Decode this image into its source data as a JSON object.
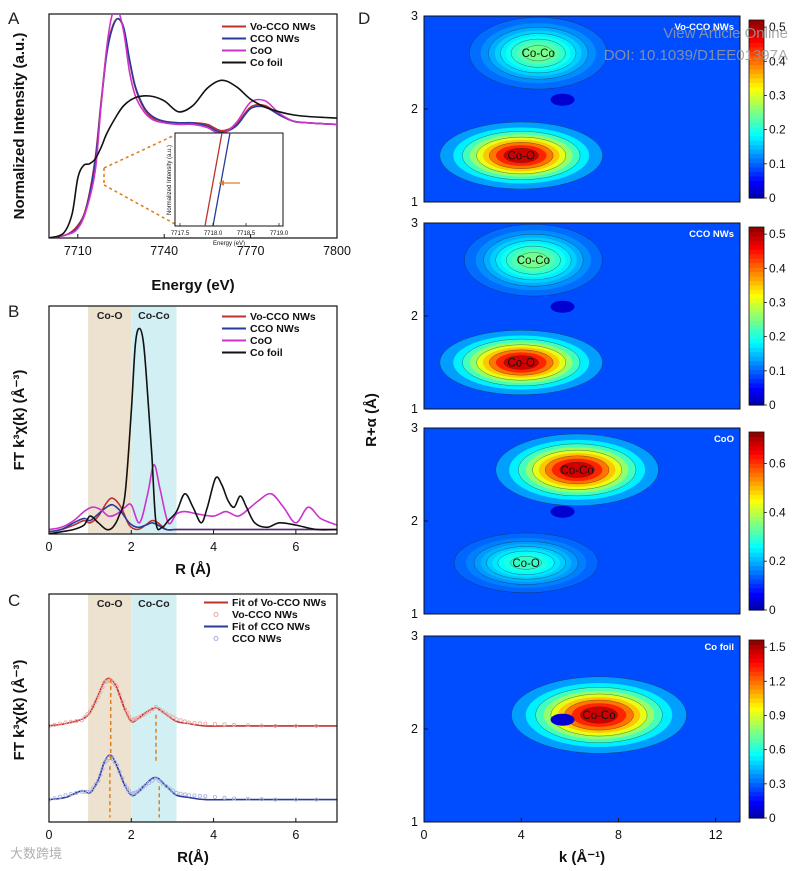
{
  "watermark": {
    "view_article": "View Article Online",
    "doi": "DOI: 10.1039/D1EE01397A",
    "logo_text": "大数跨境"
  },
  "colors": {
    "vo_cco": "#c0302c",
    "cco": "#2a3a9c",
    "coo": "#cc33cc",
    "co_foil": "#111111",
    "band_coo": "#ede2cf",
    "band_coco": "#d2f0f3",
    "fit_guide": "#e08020"
  },
  "chart_data": [
    {
      "id": "A",
      "type": "line",
      "panel_label": "A",
      "xlabel": "Energy (eV)",
      "ylabel": "Normalized Intensity (a.u.)",
      "xlim": [
        7700,
        7800
      ],
      "ylim": [
        0,
        1.42
      ],
      "xticks": [
        7710,
        7740,
        7770,
        7800
      ],
      "xtick_labels": [
        "7710",
        "7740",
        "7770",
        "7800"
      ],
      "legend": [
        "Vo-CCO NWs",
        "CCO NWs",
        "CoO",
        "Co foil"
      ],
      "series": [
        {
          "name": "Vo-CCO NWs",
          "color_key": "vo_cco",
          "x": [
            7700,
            7706,
            7710,
            7713,
            7716,
            7718,
            7720,
            7722,
            7724,
            7726,
            7728,
            7730,
            7733,
            7736,
            7740,
            7745,
            7750,
            7755,
            7760,
            7765,
            7770,
            7775,
            7780,
            7785,
            7790,
            7800
          ],
          "y": [
            0.0,
            0.02,
            0.08,
            0.2,
            0.5,
            0.85,
            1.18,
            1.34,
            1.39,
            1.32,
            1.12,
            0.95,
            0.82,
            0.76,
            0.74,
            0.73,
            0.73,
            0.72,
            0.68,
            0.72,
            0.83,
            0.84,
            0.78,
            0.74,
            0.73,
            0.72
          ]
        },
        {
          "name": "CCO NWs",
          "color_key": "cco",
          "x": [
            7700,
            7706,
            7710,
            7713,
            7716,
            7718,
            7720,
            7722,
            7724,
            7726,
            7728,
            7730,
            7733,
            7736,
            7740,
            7745,
            7750,
            7755,
            7760,
            7765,
            7770,
            7775,
            7780,
            7785,
            7790,
            7800
          ],
          "y": [
            0.0,
            0.02,
            0.07,
            0.19,
            0.48,
            0.83,
            1.16,
            1.33,
            1.39,
            1.33,
            1.13,
            0.96,
            0.83,
            0.77,
            0.74,
            0.73,
            0.73,
            0.71,
            0.67,
            0.71,
            0.82,
            0.83,
            0.78,
            0.74,
            0.73,
            0.72
          ]
        },
        {
          "name": "CoO",
          "color_key": "coo",
          "x": [
            7700,
            7706,
            7710,
            7713,
            7716,
            7718,
            7720,
            7722,
            7724,
            7726,
            7728,
            7730,
            7733,
            7736,
            7740,
            7745,
            7750,
            7755,
            7760,
            7765,
            7770,
            7775,
            7780,
            7785,
            7790,
            7800
          ],
          "y": [
            0.0,
            0.02,
            0.06,
            0.18,
            0.42,
            0.82,
            1.2,
            1.42,
            1.44,
            1.3,
            1.05,
            0.9,
            0.8,
            0.75,
            0.73,
            0.72,
            0.72,
            0.7,
            0.66,
            0.73,
            0.86,
            0.87,
            0.79,
            0.74,
            0.73,
            0.72
          ]
        },
        {
          "name": "Co foil",
          "color_key": "co_foil",
          "x": [
            7700,
            7705,
            7708,
            7710,
            7712,
            7714,
            7716,
            7718,
            7720,
            7723,
            7726,
            7730,
            7735,
            7740,
            7745,
            7750,
            7755,
            7760,
            7765,
            7770,
            7775,
            7780,
            7785,
            7790,
            7800
          ],
          "y": [
            0.0,
            0.03,
            0.15,
            0.38,
            0.46,
            0.47,
            0.5,
            0.57,
            0.66,
            0.76,
            0.84,
            0.89,
            0.9,
            0.87,
            0.8,
            0.84,
            0.95,
            1.0,
            0.96,
            0.88,
            0.83,
            0.8,
            0.78,
            0.77,
            0.76
          ]
        }
      ],
      "inset": {
        "xlabel": "Energy (eV)",
        "ylabel": "Normalized Intensity (a.u.)",
        "xtick_labels": [
          "7717.5",
          "7718.0",
          "7718.5",
          "7719.0"
        ]
      }
    },
    {
      "id": "B",
      "type": "line",
      "panel_label": "B",
      "xlabel": "R (Å)",
      "ylabel": "FT k³χ(k) (Å⁻³)",
      "xlim": [
        0,
        7
      ],
      "ylim": [
        0,
        1.02
      ],
      "xticks": [
        0,
        2,
        4,
        6
      ],
      "xtick_labels": [
        "0",
        "2",
        "4",
        "6"
      ],
      "bands": [
        {
          "label": "Co-O",
          "range": [
            0.95,
            2.0
          ],
          "color_key": "band_coo"
        },
        {
          "label": "Co-Co",
          "range": [
            2.0,
            3.1
          ],
          "color_key": "band_coco"
        }
      ],
      "legend": [
        "Vo-CCO NWs",
        "CCO NWs",
        "CoO",
        "Co foil"
      ],
      "series": [
        {
          "name": "Vo-CCO NWs",
          "color_key": "vo_cco",
          "x": [
            0,
            0.3,
            0.6,
            0.85,
            1.0,
            1.2,
            1.4,
            1.55,
            1.75,
            1.95,
            2.15,
            2.35,
            2.5,
            2.65,
            2.85,
            3.1,
            3.5,
            4.0,
            4.5,
            5.0,
            5.5,
            6.0,
            6.5,
            7.0
          ],
          "y": [
            0.01,
            0.02,
            0.04,
            0.06,
            0.05,
            0.08,
            0.14,
            0.16,
            0.12,
            0.04,
            0.02,
            0.04,
            0.06,
            0.05,
            0.02,
            0.02,
            0.02,
            0.02,
            0.02,
            0.02,
            0.02,
            0.02,
            0.02,
            0.02
          ]
        },
        {
          "name": "CCO NWs",
          "color_key": "cco",
          "x": [
            0,
            0.3,
            0.6,
            0.85,
            1.0,
            1.2,
            1.4,
            1.55,
            1.75,
            1.95,
            2.15,
            2.35,
            2.5,
            2.65,
            2.85,
            3.1,
            3.5,
            4.0,
            4.5,
            5.0,
            5.5,
            6.0,
            6.5,
            7.0
          ],
          "y": [
            0.01,
            0.02,
            0.05,
            0.07,
            0.06,
            0.09,
            0.12,
            0.13,
            0.1,
            0.05,
            0.03,
            0.04,
            0.05,
            0.04,
            0.02,
            0.02,
            0.02,
            0.02,
            0.02,
            0.02,
            0.02,
            0.02,
            0.02,
            0.02
          ]
        },
        {
          "name": "CoO",
          "color_key": "coo",
          "x": [
            0,
            0.3,
            0.6,
            0.85,
            1.05,
            1.25,
            1.45,
            1.65,
            1.85,
            2.0,
            2.2,
            2.4,
            2.55,
            2.7,
            2.9,
            3.1,
            3.3,
            3.6,
            4.0,
            4.3,
            4.6,
            4.9,
            5.1,
            5.4,
            5.7,
            6.0,
            6.3,
            6.6,
            7.0
          ],
          "y": [
            0.02,
            0.03,
            0.06,
            0.1,
            0.12,
            0.11,
            0.08,
            0.09,
            0.12,
            0.13,
            0.05,
            0.18,
            0.31,
            0.2,
            0.05,
            0.09,
            0.1,
            0.09,
            0.08,
            0.1,
            0.08,
            0.12,
            0.15,
            0.18,
            0.12,
            0.05,
            0.12,
            0.07,
            0.04
          ]
        },
        {
          "name": "Co foil",
          "color_key": "co_foil",
          "x": [
            0,
            0.3,
            0.6,
            0.85,
            1.0,
            1.2,
            1.4,
            1.55,
            1.7,
            1.85,
            2.0,
            2.1,
            2.2,
            2.3,
            2.4,
            2.5,
            2.6,
            2.75,
            2.9,
            3.1,
            3.3,
            3.5,
            3.7,
            3.85,
            4.05,
            4.2,
            4.35,
            4.5,
            4.65,
            4.8,
            5.0,
            5.3,
            5.6,
            6.0,
            6.5,
            7.0
          ],
          "y": [
            0.0,
            0.01,
            0.02,
            0.04,
            0.08,
            0.05,
            0.02,
            0.03,
            0.08,
            0.18,
            0.55,
            0.85,
            0.92,
            0.85,
            0.62,
            0.35,
            0.05,
            0.03,
            0.06,
            0.1,
            0.18,
            0.12,
            0.05,
            0.12,
            0.25,
            0.22,
            0.15,
            0.12,
            0.17,
            0.12,
            0.05,
            0.03,
            0.05,
            0.04,
            0.02,
            0.02
          ]
        }
      ]
    },
    {
      "id": "C",
      "type": "line",
      "panel_label": "C",
      "xlabel": "R(Å)",
      "ylabel": "FT k³χ(k) (Å⁻³)",
      "xlim": [
        0,
        7
      ],
      "ylim": [
        0,
        1.02
      ],
      "xticks": [
        0,
        2,
        4,
        6
      ],
      "xtick_labels": [
        "0",
        "2",
        "4",
        "6"
      ],
      "bands": [
        {
          "label": "Co-O",
          "range": [
            0.95,
            2.0
          ],
          "color_key": "band_coo"
        },
        {
          "label": "Co-Co",
          "range": [
            2.0,
            3.1
          ],
          "color_key": "band_coco"
        }
      ],
      "legend": [
        "Fit of Vo-CCO NWs",
        "Vo-CCO NWs",
        "Fit of CCO NWs",
        "CCO NWs"
      ],
      "guides": [
        {
          "x": 1.5,
          "y1": 0.64,
          "y2": 0.27
        },
        {
          "x": 1.48,
          "y1": 0.25,
          "y2": 0.02
        },
        {
          "x": 2.6,
          "y1": 0.48,
          "y2": 0.27
        },
        {
          "x": 2.68,
          "y1": 0.16,
          "y2": 0.02
        }
      ],
      "series": [
        {
          "name": "Fit of Vo-CCO NWs",
          "color_key": "vo_cco",
          "offset": 0.43,
          "x": [
            0,
            0.4,
            0.8,
            1.0,
            1.2,
            1.35,
            1.5,
            1.65,
            1.85,
            2.0,
            2.15,
            2.35,
            2.6,
            2.85,
            3.1,
            3.4,
            3.8,
            4.5,
            5.5,
            7.0
          ],
          "y": [
            0.0,
            0.01,
            0.03,
            0.06,
            0.14,
            0.2,
            0.21,
            0.17,
            0.07,
            0.02,
            0.03,
            0.06,
            0.08,
            0.05,
            0.02,
            0.01,
            0.0,
            0.0,
            0.0,
            0.0
          ]
        },
        {
          "name": "Vo-CCO NWs",
          "color_key": "vo_cco",
          "offset": 0.43,
          "markers": true,
          "x": [
            0,
            0.4,
            0.8,
            1.0,
            1.2,
            1.35,
            1.5,
            1.65,
            1.85,
            2.0,
            2.15,
            2.35,
            2.6,
            2.85,
            3.1,
            3.4,
            3.8,
            4.5,
            5.5,
            7.0
          ],
          "y": [
            0.0,
            0.015,
            0.025,
            0.065,
            0.13,
            0.195,
            0.205,
            0.175,
            0.075,
            0.025,
            0.035,
            0.055,
            0.085,
            0.055,
            0.03,
            0.015,
            0.01,
            0.005,
            0.0,
            0.0
          ]
        },
        {
          "name": "Fit of CCO NWs",
          "color_key": "cco",
          "offset": 0.1,
          "x": [
            0,
            0.4,
            0.8,
            1.0,
            1.2,
            1.35,
            1.5,
            1.65,
            1.85,
            2.0,
            2.15,
            2.35,
            2.6,
            2.85,
            3.1,
            3.4,
            3.8,
            4.5,
            5.5,
            7.0
          ],
          "y": [
            0.0,
            0.01,
            0.04,
            0.03,
            0.09,
            0.17,
            0.2,
            0.15,
            0.06,
            0.02,
            0.03,
            0.07,
            0.1,
            0.06,
            0.02,
            0.01,
            0.0,
            0.0,
            0.0,
            0.0
          ]
        },
        {
          "name": "CCO NWs",
          "color_key": "cco",
          "offset": 0.1,
          "markers": true,
          "x": [
            0,
            0.4,
            0.8,
            1.0,
            1.2,
            1.35,
            1.5,
            1.65,
            1.85,
            2.0,
            2.15,
            2.35,
            2.6,
            2.85,
            3.1,
            3.4,
            3.8,
            4.5,
            5.5,
            7.0
          ],
          "y": [
            0.0,
            0.02,
            0.035,
            0.035,
            0.085,
            0.165,
            0.195,
            0.155,
            0.065,
            0.025,
            0.035,
            0.065,
            0.095,
            0.06,
            0.03,
            0.02,
            0.015,
            0.005,
            0.0,
            0.0
          ]
        }
      ]
    },
    {
      "id": "D",
      "type": "heatmap",
      "panel_label": "D",
      "xlabel": "k (Å⁻¹)",
      "ylabel": "R+α (Å)",
      "xlim": [
        0,
        13
      ],
      "xticks": [
        0,
        4,
        8,
        12
      ],
      "xtick_labels": [
        "0",
        "4",
        "8",
        "12"
      ],
      "maps": [
        {
          "title": "Vo-CCO NWs",
          "ylim": [
            1,
            3
          ],
          "yticks": [
            "1",
            "2",
            "3"
          ],
          "cbar_max": 0.5,
          "cbar_ticks": [
            "0",
            "0.1",
            "0.2",
            "0.3",
            "0.4",
            "0.5"
          ],
          "peaks": [
            {
              "label": "Co-O",
              "k": 4.0,
              "r": 1.5,
              "amp": 0.5,
              "sk": 2.6,
              "sr": 0.28
            },
            {
              "label": "Co-Co",
              "k": 4.7,
              "r": 2.6,
              "amp": 0.2,
              "sk": 2.2,
              "sr": 0.3
            }
          ]
        },
        {
          "title": "CCO NWs",
          "ylim": [
            1,
            3
          ],
          "yticks": [
            "1",
            "2",
            "3"
          ],
          "cbar_max": 0.5,
          "cbar_ticks": [
            "0",
            "0.1",
            "0.2",
            "0.3",
            "0.4",
            "0.5"
          ],
          "peaks": [
            {
              "label": "Co-O",
              "k": 4.0,
              "r": 1.5,
              "amp": 0.5,
              "sk": 2.6,
              "sr": 0.27
            },
            {
              "label": "Co-Co",
              "k": 4.5,
              "r": 2.6,
              "amp": 0.2,
              "sk": 2.2,
              "sr": 0.3
            }
          ]
        },
        {
          "title": "CoO",
          "ylim": [
            1,
            3
          ],
          "yticks": [
            "1",
            "2",
            "3"
          ],
          "cbar_max": 0.7,
          "cbar_ticks": [
            "0",
            "0.2",
            "0.4",
            "0.6"
          ],
          "peaks": [
            {
              "label": "Co-Co",
              "k": 6.3,
              "r": 2.55,
              "amp": 0.7,
              "sk": 2.6,
              "sr": 0.3
            },
            {
              "label": "Co-O",
              "k": 4.2,
              "r": 1.55,
              "amp": 0.22,
              "sk": 2.3,
              "sr": 0.25
            }
          ]
        },
        {
          "title": "Co foil",
          "ylim": [
            1,
            3
          ],
          "yticks": [
            "1",
            "2",
            "3"
          ],
          "cbar_max": 1.5,
          "cbar_ticks": [
            "0",
            "0.3",
            "0.6",
            "0.9",
            "1.2",
            "1.5"
          ],
          "peaks": [
            {
              "label": "Co-Co",
              "k": 7.2,
              "r": 2.15,
              "amp": 1.5,
              "sk": 2.8,
              "sr": 0.32
            }
          ]
        }
      ]
    }
  ]
}
